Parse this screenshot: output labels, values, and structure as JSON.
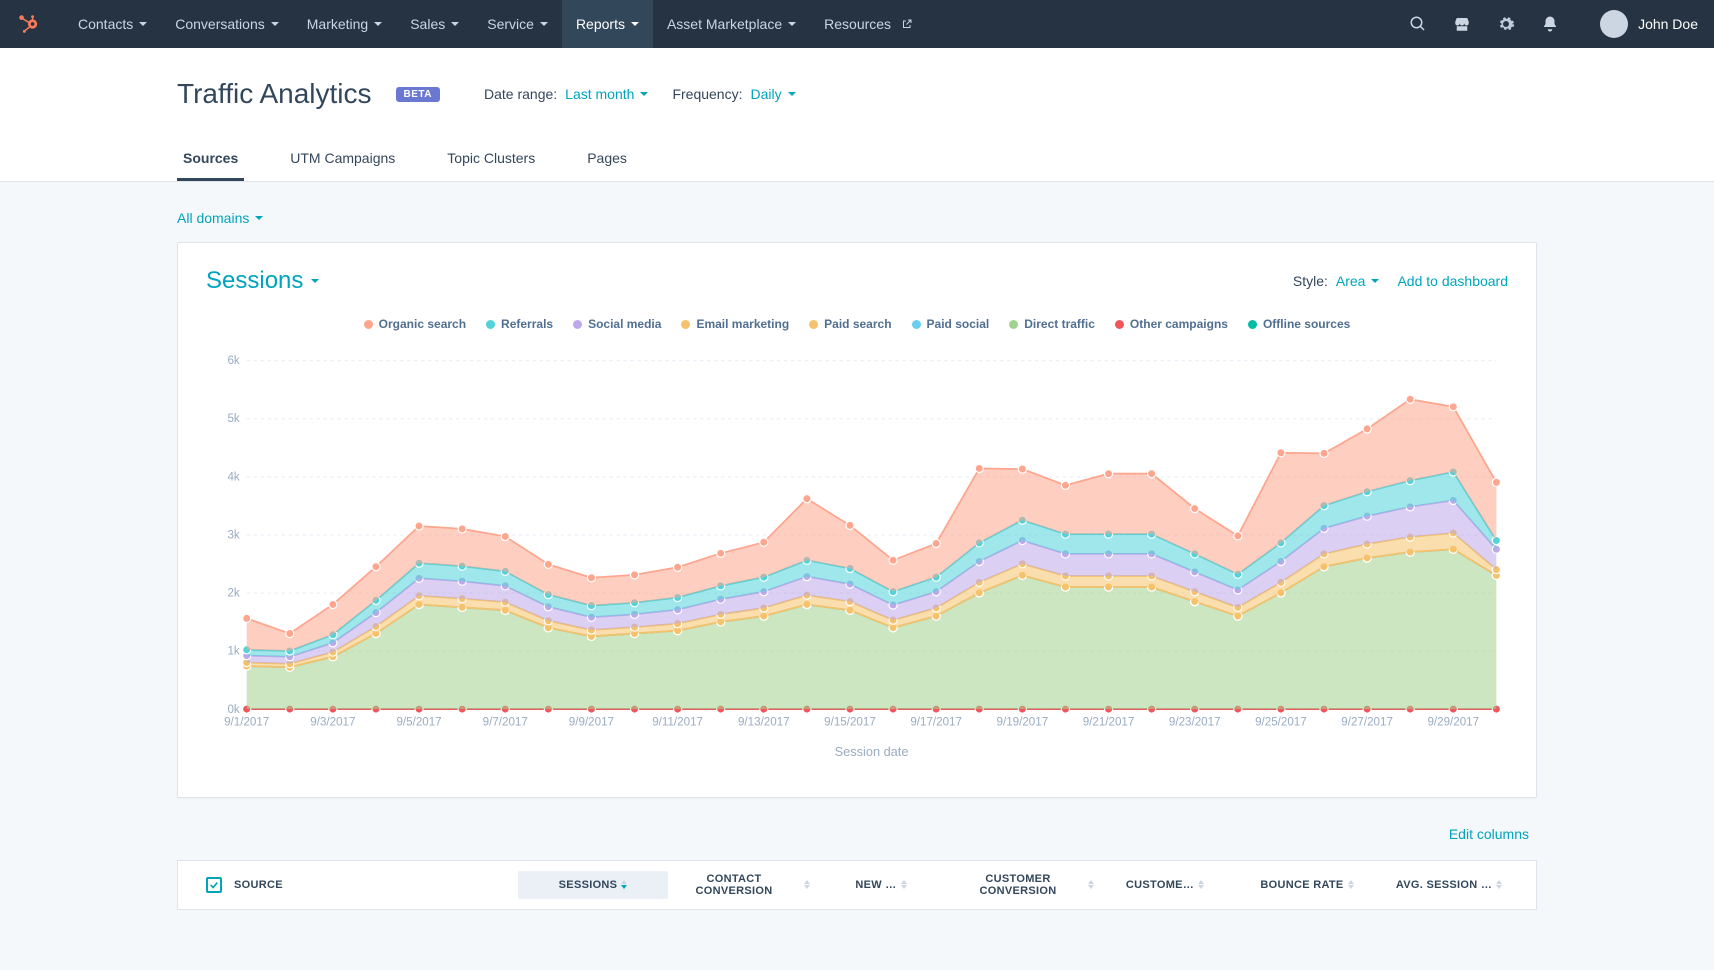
{
  "nav": {
    "logo_color": "#ff7a59",
    "items": [
      {
        "label": "Contacts",
        "dropdown": true
      },
      {
        "label": "Conversations",
        "dropdown": true
      },
      {
        "label": "Marketing",
        "dropdown": true
      },
      {
        "label": "Sales",
        "dropdown": true
      },
      {
        "label": "Service",
        "dropdown": true
      },
      {
        "label": "Reports",
        "dropdown": true,
        "active": true
      },
      {
        "label": "Asset Marketplace",
        "dropdown": true
      },
      {
        "label": "Resources",
        "dropdown": false,
        "external": true
      }
    ],
    "user_name": "John Doe"
  },
  "header": {
    "title": "Traffic Analytics",
    "badge": "BETA",
    "date_range_label": "Date range:",
    "date_range_value": "Last month",
    "frequency_label": "Frequency:",
    "frequency_value": "Daily",
    "tabs": [
      "Sources",
      "UTM Campaigns",
      "Topic Clusters",
      "Pages"
    ],
    "active_tab": 0
  },
  "filter": {
    "domain_value": "All domains"
  },
  "chart_card": {
    "metric": "Sessions",
    "style_label": "Style:",
    "style_value": "Area",
    "add_link": "Add to dashboard",
    "x_axis_label": "Session date"
  },
  "chart": {
    "type": "area-stacked",
    "y_ticks": [
      0,
      1000,
      2000,
      3000,
      4000,
      5000,
      6000
    ],
    "y_tick_labels": [
      "0k",
      "1k",
      "2k",
      "3k",
      "4k",
      "5k",
      "6k"
    ],
    "ylim": [
      0,
      6000
    ],
    "background_color": "#ffffff",
    "grid_color": "#eaf0f6",
    "marker_radius": 3.5,
    "line_width": 1.5,
    "x_labels": [
      "9/1/2017",
      "",
      "9/3/2017",
      "",
      "9/5/2017",
      "",
      "9/7/2017",
      "",
      "9/9/2017",
      "",
      "9/11/2017",
      "",
      "9/13/2017",
      "",
      "9/15/2017",
      "",
      "9/17/2017",
      "",
      "9/19/2017",
      "",
      "9/21/2017",
      "",
      "9/23/2017",
      "",
      "9/25/2017",
      "",
      "9/27/2017",
      "",
      "9/29/2017",
      ""
    ],
    "series": [
      {
        "name": "Offline sources",
        "color": "#00bda5",
        "values": [
          5,
          5,
          5,
          5,
          5,
          5,
          5,
          5,
          5,
          5,
          5,
          5,
          5,
          5,
          5,
          5,
          5,
          5,
          5,
          5,
          5,
          5,
          5,
          5,
          5,
          5,
          5,
          5,
          5,
          5
        ]
      },
      {
        "name": "Other campaigns",
        "color": "#f2545b",
        "values": [
          0,
          0,
          0,
          0,
          0,
          0,
          0,
          0,
          0,
          0,
          0,
          0,
          0,
          0,
          0,
          0,
          0,
          0,
          0,
          0,
          0,
          0,
          0,
          0,
          0,
          0,
          0,
          0,
          0,
          0
        ]
      },
      {
        "name": "Direct traffic",
        "color": "#a2d28f",
        "values": [
          740,
          720,
          900,
          1300,
          1800,
          1750,
          1700,
          1400,
          1250,
          1300,
          1350,
          1500,
          1600,
          1800,
          1700,
          1400,
          1600,
          2000,
          2300,
          2100,
          2100,
          2100,
          1850,
          1600,
          2000,
          2450,
          2600,
          2700,
          2750,
          2300
        ]
      },
      {
        "name": "Paid social",
        "color": "#6bceee",
        "values": [
          0,
          0,
          0,
          0,
          0,
          0,
          0,
          0,
          0,
          0,
          0,
          0,
          0,
          0,
          0,
          0,
          0,
          0,
          0,
          0,
          0,
          0,
          0,
          0,
          0,
          0,
          0,
          0,
          0,
          0
        ]
      },
      {
        "name": "Paid search",
        "color": "#f5c26b",
        "values": [
          0,
          0,
          0,
          0,
          0,
          0,
          0,
          0,
          0,
          0,
          0,
          0,
          0,
          0,
          0,
          0,
          0,
          0,
          0,
          0,
          0,
          0,
          0,
          0,
          0,
          0,
          0,
          0,
          0,
          0
        ]
      },
      {
        "name": "Email marketing",
        "color": "#f5c26b",
        "values": [
          60,
          60,
          80,
          120,
          150,
          150,
          140,
          120,
          110,
          110,
          120,
          130,
          140,
          160,
          150,
          130,
          140,
          180,
          200,
          190,
          190,
          190,
          170,
          150,
          180,
          220,
          240,
          260,
          280,
          100
        ]
      },
      {
        "name": "Social media",
        "color": "#bda9ea",
        "values": [
          120,
          120,
          160,
          240,
          300,
          300,
          280,
          240,
          220,
          220,
          240,
          260,
          280,
          320,
          300,
          260,
          280,
          360,
          400,
          380,
          380,
          380,
          340,
          300,
          360,
          440,
          480,
          520,
          560,
          350
        ]
      },
      {
        "name": "Referrals",
        "color": "#51d3d9",
        "values": [
          100,
          100,
          140,
          210,
          260,
          260,
          250,
          210,
          200,
          200,
          210,
          230,
          250,
          280,
          270,
          230,
          250,
          320,
          350,
          340,
          340,
          340,
          310,
          270,
          320,
          390,
          420,
          450,
          490,
          150
        ]
      },
      {
        "name": "Organic search",
        "color": "#fea58e",
        "values": [
          540,
          300,
          520,
          580,
          640,
          640,
          600,
          520,
          480,
          480,
          520,
          560,
          600,
          1060,
          740,
          540,
          580,
          1280,
          880,
          840,
          1040,
          1040,
          780,
          660,
          1550,
          900,
          1080,
          1400,
          1120,
          1000
        ]
      }
    ],
    "legend_order": [
      "Organic search",
      "Referrals",
      "Social media",
      "Email marketing",
      "Paid search",
      "Paid social",
      "Direct traffic",
      "Other campaigns",
      "Offline sources"
    ]
  },
  "table": {
    "edit_link": "Edit columns",
    "columns": [
      {
        "label": "SOURCE",
        "align": "left"
      },
      {
        "label": "SESSIONS",
        "selected": true,
        "sort": "desc"
      },
      {
        "label": "CONTACT CONVERSION"
      },
      {
        "label": "NEW …"
      },
      {
        "label": "CUSTOMER CONVERSION"
      },
      {
        "label": "CUSTOME…"
      },
      {
        "label": "BOUNCE RATE"
      },
      {
        "label": "AVG. SESSION …"
      }
    ]
  }
}
